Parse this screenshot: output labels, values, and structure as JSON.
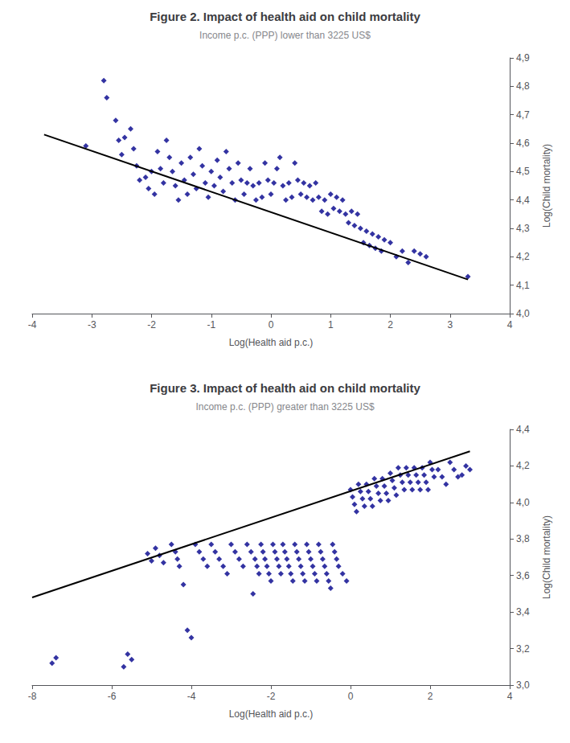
{
  "chart_data": [
    {
      "type": "scatter",
      "title": "Figure 2. Impact of health aid on child mortality",
      "subtitle": "Income p.c. (PPP) lower than 3225 US$",
      "xlabel": "Log(Health aid p.c.)",
      "ylabel": "Log(Child mortality)",
      "xlim": [
        -4,
        4
      ],
      "ylim": [
        4.0,
        4.9
      ],
      "xticks": [
        -4,
        -3,
        -2,
        -1,
        0,
        1,
        2,
        3,
        4
      ],
      "yticks": [
        {
          "value": 4.0,
          "label": "4,0"
        },
        {
          "value": 4.1,
          "label": "4,1"
        },
        {
          "value": 4.2,
          "label": "4,2"
        },
        {
          "value": 4.3,
          "label": "4,3"
        },
        {
          "value": 4.4,
          "label": "4,4"
        },
        {
          "value": 4.5,
          "label": "4,5"
        },
        {
          "value": 4.6,
          "label": "4,6"
        },
        {
          "value": 4.7,
          "label": "4,7"
        },
        {
          "value": 4.8,
          "label": "4,8"
        },
        {
          "value": 4.9,
          "label": "4,9"
        }
      ],
      "grid": false,
      "series": [
        {
          "type": "scatter",
          "color": "#00008B",
          "marker": "diamond",
          "x": [
            -3.1,
            -2.8,
            -2.75,
            -2.6,
            -2.55,
            -2.5,
            -2.45,
            -2.35,
            -2.3,
            -2.25,
            -2.2,
            -2.1,
            -2.05,
            -2.0,
            -1.95,
            -1.9,
            -1.85,
            -1.8,
            -1.75,
            -1.7,
            -1.65,
            -1.6,
            -1.55,
            -1.5,
            -1.45,
            -1.4,
            -1.35,
            -1.3,
            -1.25,
            -1.2,
            -1.15,
            -1.1,
            -1.05,
            -1.0,
            -0.95,
            -0.9,
            -0.85,
            -0.8,
            -0.75,
            -0.7,
            -0.65,
            -0.6,
            -0.55,
            -0.5,
            -0.45,
            -0.4,
            -0.35,
            -0.3,
            -0.25,
            -0.2,
            -0.15,
            -0.1,
            -0.05,
            0.0,
            0.05,
            0.1,
            0.15,
            0.2,
            0.25,
            0.3,
            0.35,
            0.4,
            0.45,
            0.5,
            0.55,
            0.6,
            0.65,
            0.7,
            0.75,
            0.8,
            0.85,
            0.9,
            0.95,
            1.0,
            1.05,
            1.1,
            1.15,
            1.2,
            1.25,
            1.3,
            1.35,
            1.4,
            1.45,
            1.5,
            1.55,
            1.6,
            1.65,
            1.7,
            1.75,
            1.8,
            1.85,
            1.9,
            2.0,
            2.1,
            2.2,
            2.3,
            2.4,
            2.5,
            2.6,
            3.3
          ],
          "values": [
            4.59,
            4.82,
            4.76,
            4.68,
            4.61,
            4.56,
            4.62,
            4.65,
            4.58,
            4.52,
            4.47,
            4.48,
            4.44,
            4.5,
            4.42,
            4.57,
            4.51,
            4.46,
            4.61,
            4.55,
            4.5,
            4.45,
            4.4,
            4.53,
            4.47,
            4.42,
            4.55,
            4.49,
            4.44,
            4.58,
            4.52,
            4.46,
            4.41,
            4.5,
            4.45,
            4.54,
            4.48,
            4.43,
            4.57,
            4.51,
            4.46,
            4.4,
            4.53,
            4.47,
            4.42,
            4.46,
            4.51,
            4.45,
            4.4,
            4.46,
            4.41,
            4.53,
            4.47,
            4.42,
            4.46,
            4.51,
            4.55,
            4.45,
            4.4,
            4.46,
            4.41,
            4.53,
            4.47,
            4.42,
            4.46,
            4.41,
            4.45,
            4.4,
            4.46,
            4.41,
            4.36,
            4.4,
            4.35,
            4.42,
            4.37,
            4.41,
            4.36,
            4.4,
            4.35,
            4.32,
            4.36,
            4.31,
            4.35,
            4.3,
            4.25,
            4.29,
            4.24,
            4.28,
            4.23,
            4.27,
            4.22,
            4.26,
            4.25,
            4.2,
            4.22,
            4.18,
            4.22,
            4.21,
            4.2,
            4.13
          ]
        },
        {
          "type": "line",
          "color": "#000000",
          "x": [
            -3.8,
            3.3
          ],
          "values": [
            4.63,
            4.12
          ]
        }
      ]
    },
    {
      "type": "scatter",
      "title": "Figure 3. Impact of health aid on child mortality",
      "subtitle": "Income p.c. (PPP) greater than 3225 US$",
      "xlabel": "Log(Health aid p.c.)",
      "ylabel": "Log(Child mortality)",
      "xlim": [
        -8,
        4
      ],
      "ylim": [
        3.0,
        4.4
      ],
      "xticks": [
        -8,
        -6,
        -4,
        -2,
        0,
        2,
        4
      ],
      "yticks": [
        {
          "value": 3.0,
          "label": "3,0"
        },
        {
          "value": 3.2,
          "label": "3,2"
        },
        {
          "value": 3.4,
          "label": "3,4"
        },
        {
          "value": 3.6,
          "label": "3,6"
        },
        {
          "value": 3.8,
          "label": "3,8"
        },
        {
          "value": 4.0,
          "label": "4,0"
        },
        {
          "value": 4.2,
          "label": "4,2"
        },
        {
          "value": 4.4,
          "label": "4,4"
        }
      ],
      "grid": false,
      "series": [
        {
          "type": "scatter",
          "color": "#00008B",
          "marker": "diamond",
          "x": [
            -7.5,
            -7.4,
            -5.7,
            -5.6,
            -5.5,
            -5.1,
            -5.0,
            -4.9,
            -4.8,
            -4.7,
            -4.5,
            -4.4,
            -4.35,
            -4.3,
            -4.2,
            -4.1,
            -4.0,
            -3.9,
            -3.8,
            -3.7,
            -3.6,
            -3.5,
            -3.4,
            -3.3,
            -3.2,
            -3.1,
            -3.0,
            -2.9,
            -2.8,
            -2.7,
            -2.6,
            -2.5,
            -2.45,
            -2.4,
            -2.35,
            -2.3,
            -2.25,
            -2.2,
            -2.15,
            -2.1,
            -2.05,
            -2.0,
            -1.95,
            -1.9,
            -1.85,
            -1.8,
            -1.75,
            -1.7,
            -1.65,
            -1.6,
            -1.55,
            -1.5,
            -1.45,
            -1.4,
            -1.35,
            -1.3,
            -1.25,
            -1.2,
            -1.15,
            -1.1,
            -1.05,
            -1.0,
            -0.95,
            -0.9,
            -0.85,
            -0.8,
            -0.75,
            -0.7,
            -0.65,
            -0.6,
            -0.55,
            -0.5,
            -0.45,
            -0.4,
            -0.35,
            -0.3,
            -0.2,
            -0.1,
            0.0,
            0.05,
            0.1,
            0.15,
            0.2,
            0.25,
            0.3,
            0.35,
            0.4,
            0.45,
            0.5,
            0.55,
            0.6,
            0.65,
            0.7,
            0.75,
            0.8,
            0.85,
            0.9,
            0.95,
            1.0,
            1.05,
            1.1,
            1.15,
            1.2,
            1.25,
            1.3,
            1.35,
            1.4,
            1.45,
            1.5,
            1.55,
            1.6,
            1.65,
            1.7,
            1.75,
            1.8,
            1.85,
            1.9,
            1.95,
            2.0,
            2.05,
            2.1,
            2.2,
            2.3,
            2.4,
            2.5,
            2.6,
            2.7,
            2.8,
            2.9,
            3.0
          ],
          "values": [
            3.12,
            3.15,
            3.1,
            3.17,
            3.14,
            3.72,
            3.68,
            3.75,
            3.71,
            3.67,
            3.77,
            3.73,
            3.69,
            3.65,
            3.55,
            3.3,
            3.26,
            3.77,
            3.73,
            3.69,
            3.65,
            3.77,
            3.73,
            3.69,
            3.65,
            3.61,
            3.77,
            3.73,
            3.69,
            3.65,
            3.77,
            3.73,
            3.5,
            3.69,
            3.65,
            3.61,
            3.77,
            3.73,
            3.69,
            3.65,
            3.61,
            3.57,
            3.77,
            3.73,
            3.69,
            3.65,
            3.61,
            3.77,
            3.73,
            3.69,
            3.65,
            3.61,
            3.57,
            3.77,
            3.73,
            3.69,
            3.65,
            3.61,
            3.57,
            3.77,
            3.73,
            3.69,
            3.65,
            3.61,
            3.57,
            3.77,
            3.73,
            3.69,
            3.65,
            3.61,
            3.57,
            3.53,
            3.77,
            3.73,
            3.69,
            3.65,
            3.61,
            3.57,
            4.07,
            4.03,
            3.99,
            3.95,
            4.1,
            4.06,
            4.02,
            3.98,
            4.1,
            4.06,
            4.02,
            3.98,
            4.13,
            4.09,
            4.05,
            4.01,
            4.13,
            4.09,
            4.05,
            4.01,
            4.16,
            4.12,
            4.08,
            4.04,
            4.19,
            4.15,
            4.11,
            4.07,
            4.19,
            4.15,
            4.11,
            4.07,
            4.19,
            4.15,
            4.11,
            4.07,
            4.19,
            4.15,
            4.11,
            4.07,
            4.22,
            4.18,
            4.14,
            4.18,
            4.14,
            4.1,
            4.22,
            4.18,
            4.14,
            4.15,
            4.2,
            4.18
          ]
        },
        {
          "type": "line",
          "color": "#000000",
          "x": [
            -8,
            3.0
          ],
          "values": [
            3.48,
            4.28
          ]
        }
      ]
    }
  ]
}
